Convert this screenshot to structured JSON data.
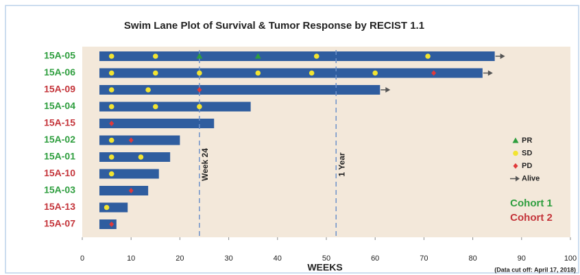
{
  "chart_data": {
    "type": "swimlane",
    "title": "Swim Lane Plot of Survival & Tumor Response by RECIST 1.1",
    "xlabel": "WEEKS",
    "note": "(Data cut off: April 17, 2018)",
    "categories": [
      "15A-05",
      "15A-06",
      "15A-09",
      "15A-04",
      "15A-15",
      "15A-02",
      "15A-01",
      "15A-10",
      "15A-03",
      "15A-13",
      "15A-07"
    ],
    "category_colors": [
      "#2e9e3e",
      "#2e9e3e",
      "#c4343a",
      "#2e9e3e",
      "#c4343a",
      "#2e9e3e",
      "#2e9e3e",
      "#c4343a",
      "#2e9e3e",
      "#c4343a",
      "#c4343a"
    ],
    "values": [
      84.5,
      82,
      61,
      34.5,
      27,
      20,
      18,
      15.7,
      13.5,
      9.3,
      7
    ],
    "color": "#2f5d9f",
    "markers": [
      {
        "name": "PR",
        "color": "#2e9e3e",
        "shape": "triangle",
        "x": [
          [
            24,
            36
          ],
          [],
          [],
          [],
          [],
          [],
          [],
          [],
          [],
          [],
          []
        ]
      },
      {
        "name": "SD",
        "color": "#f2e431",
        "shape": "circle",
        "x": [
          [
            6,
            15,
            48,
            70.8
          ],
          [
            6,
            15,
            24,
            36,
            47,
            60
          ],
          [
            6,
            13.5
          ],
          [
            6,
            15,
            24
          ],
          [],
          [
            6
          ],
          [
            6,
            12
          ],
          [
            6
          ],
          [],
          [
            5
          ],
          []
        ]
      },
      {
        "name": "PD",
        "color": "#e03a3a",
        "shape": "diamond",
        "x": [
          [],
          [
            72
          ],
          [
            24
          ],
          [],
          [
            6
          ],
          [
            10
          ],
          [],
          [],
          [
            10
          ],
          [],
          [
            6
          ]
        ]
      }
    ],
    "alive": {
      "name": "Alive",
      "color": "#555555",
      "values": [
        true,
        true,
        true,
        false,
        false,
        false,
        false,
        false,
        false,
        false,
        false
      ]
    },
    "cohorts": [
      {
        "name": "Cohort 1",
        "color": "#2e9e3e"
      },
      {
        "name": "Cohort 2",
        "color": "#c4343a"
      }
    ],
    "reference_lines": [
      {
        "value": 24,
        "label": "Week 24"
      },
      {
        "value": 52,
        "label": "1 Year"
      }
    ],
    "xlim": [
      0,
      100
    ],
    "xticks": [
      0,
      10,
      20,
      30,
      40,
      50,
      60,
      70,
      80,
      90,
      100
    ]
  }
}
